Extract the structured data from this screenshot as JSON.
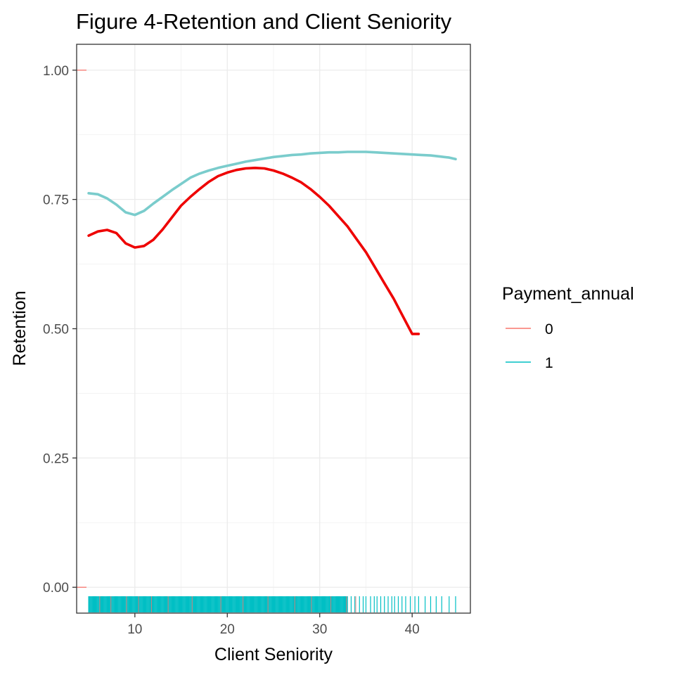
{
  "chart_data": {
    "type": "line",
    "title": "Figure 4-Retention and Client Seniority",
    "xlabel": "Client Seniority",
    "ylabel": "Retention",
    "xlim": [
      3.7,
      46.3
    ],
    "ylim": [
      -0.05,
      1.05
    ],
    "x_ticks": [
      {
        "value": 10,
        "label": "10"
      },
      {
        "value": 20,
        "label": "20"
      },
      {
        "value": 30,
        "label": "30"
      },
      {
        "value": 40,
        "label": "40"
      }
    ],
    "y_ticks": [
      {
        "value": 0.0,
        "label": "0.00"
      },
      {
        "value": 0.25,
        "label": "0.25"
      },
      {
        "value": 0.5,
        "label": "0.50"
      },
      {
        "value": 0.75,
        "label": "0.75"
      },
      {
        "value": 1.0,
        "label": "1.00"
      }
    ],
    "grid": true,
    "legend": {
      "title": "Payment_annual",
      "position": "right",
      "entries": [
        {
          "label": "0",
          "color": "#F8766D"
        },
        {
          "label": "1",
          "color": "#00BFC4"
        }
      ]
    },
    "series": [
      {
        "name": "0",
        "color": "#EE0000",
        "x": [
          5,
          6,
          7,
          8,
          9,
          10,
          11,
          12,
          13,
          14,
          15,
          16,
          17,
          18,
          19,
          20,
          21,
          22,
          23,
          24,
          25,
          26,
          27,
          28,
          29,
          30,
          31,
          32,
          33,
          34,
          35,
          36,
          37,
          38,
          39,
          40,
          40.7
        ],
        "y": [
          0.68,
          0.688,
          0.691,
          0.685,
          0.665,
          0.657,
          0.66,
          0.672,
          0.692,
          0.715,
          0.738,
          0.755,
          0.77,
          0.784,
          0.795,
          0.802,
          0.807,
          0.81,
          0.811,
          0.81,
          0.806,
          0.8,
          0.792,
          0.783,
          0.77,
          0.755,
          0.738,
          0.718,
          0.698,
          0.673,
          0.648,
          0.618,
          0.588,
          0.558,
          0.524,
          0.49,
          0.49
        ]
      },
      {
        "name": "1",
        "color": "#7ACCCC",
        "x": [
          5,
          6,
          7,
          8,
          9,
          10,
          11,
          12,
          13,
          14,
          15,
          16,
          17,
          18,
          19,
          20,
          21,
          22,
          23,
          24,
          25,
          26,
          27,
          28,
          29,
          30,
          31,
          32,
          33,
          34,
          35,
          36,
          37,
          38,
          39,
          40,
          41,
          42,
          43,
          44,
          44.7
        ],
        "y": [
          0.762,
          0.76,
          0.752,
          0.74,
          0.725,
          0.72,
          0.728,
          0.742,
          0.755,
          0.768,
          0.78,
          0.792,
          0.8,
          0.806,
          0.811,
          0.815,
          0.819,
          0.823,
          0.826,
          0.829,
          0.832,
          0.834,
          0.836,
          0.837,
          0.839,
          0.84,
          0.841,
          0.841,
          0.842,
          0.842,
          0.842,
          0.841,
          0.84,
          0.839,
          0.838,
          0.837,
          0.836,
          0.835,
          0.833,
          0.831,
          0.828
        ]
      }
    ],
    "rug_y": [
      {
        "value": 1.0,
        "group": "0"
      },
      {
        "value": 0.0,
        "group": "0"
      }
    ]
  }
}
